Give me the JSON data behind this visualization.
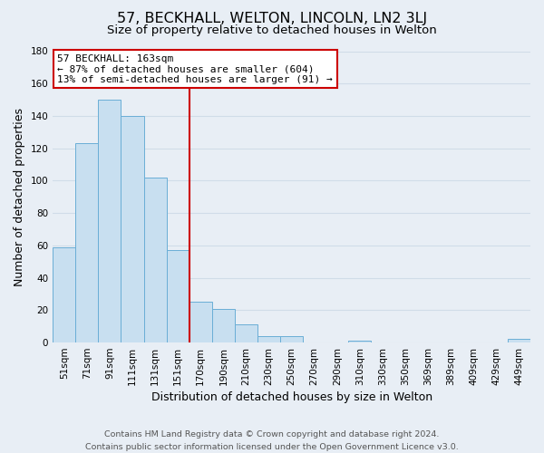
{
  "title": "57, BECKHALL, WELTON, LINCOLN, LN2 3LJ",
  "subtitle": "Size of property relative to detached houses in Welton",
  "xlabel": "Distribution of detached houses by size in Welton",
  "ylabel": "Number of detached properties",
  "bar_labels": [
    "51sqm",
    "71sqm",
    "91sqm",
    "111sqm",
    "131sqm",
    "151sqm",
    "170sqm",
    "190sqm",
    "210sqm",
    "230sqm",
    "250sqm",
    "270sqm",
    "290sqm",
    "310sqm",
    "330sqm",
    "350sqm",
    "369sqm",
    "389sqm",
    "409sqm",
    "429sqm",
    "449sqm"
  ],
  "bar_values": [
    59,
    123,
    150,
    140,
    102,
    57,
    25,
    21,
    11,
    4,
    4,
    0,
    0,
    1,
    0,
    0,
    0,
    0,
    0,
    0,
    2
  ],
  "bar_color": "#c8dff0",
  "bar_edge_color": "#6aaed6",
  "vline_x_index": 5.5,
  "vline_color": "#cc0000",
  "annotation_title": "57 BECKHALL: 163sqm",
  "annotation_line1": "← 87% of detached houses are smaller (604)",
  "annotation_line2": "13% of semi-detached houses are larger (91) →",
  "annotation_box_color": "#ffffff",
  "annotation_box_edge_color": "#cc0000",
  "ylim": [
    0,
    180
  ],
  "yticks": [
    0,
    20,
    40,
    60,
    80,
    100,
    120,
    140,
    160,
    180
  ],
  "footer_line1": "Contains HM Land Registry data © Crown copyright and database right 2024.",
  "footer_line2": "Contains public sector information licensed under the Open Government Licence v3.0.",
  "background_color": "#e8eef5",
  "grid_color": "#d0dce8",
  "title_fontsize": 11.5,
  "subtitle_fontsize": 9.5,
  "axis_label_fontsize": 9,
  "tick_fontsize": 7.5,
  "footer_fontsize": 6.8
}
